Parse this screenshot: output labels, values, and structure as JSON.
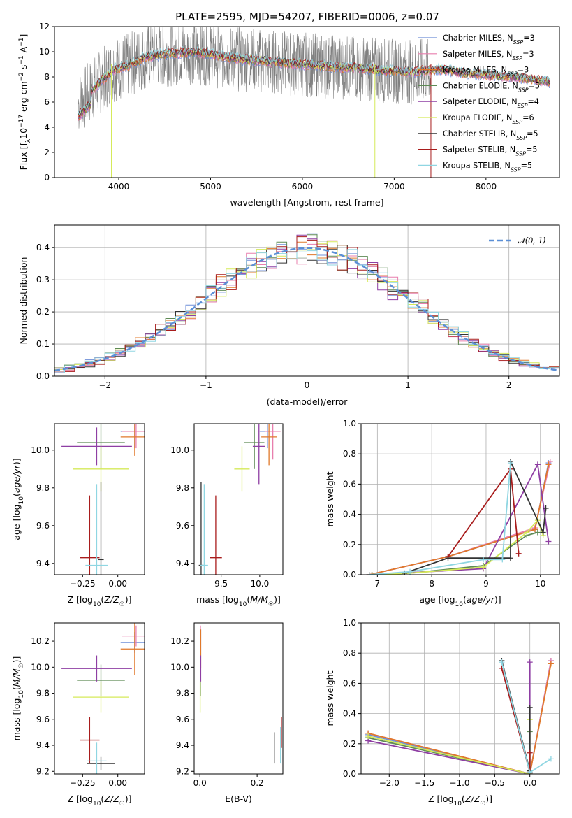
{
  "figure_title": "PLATE=2595, MJD=54207, FIBERID=0006, z=0.07",
  "colors": {
    "Chabrier MILES": "#6f8fd8",
    "Salpeter MILES": "#e87fae",
    "Kroupa MILES": "#e0782a",
    "Chabrier ELODIE": "#5e8a55",
    "Salpeter ELODIE": "#8e3ea3",
    "Kroupa ELODIE": "#d5ea5a",
    "Chabrier STELIB": "#333333",
    "Salpeter STELIB": "#a81c1c",
    "Kroupa STELIB": "#8fd6e2",
    "data": "#808080",
    "normal": "#5b8fd6"
  },
  "chart_data": [
    {
      "id": "spectrum",
      "type": "line",
      "title": "PLATE=2595, MJD=54207, FIBERID=0006, z=0.07",
      "xlabel": "wavelength [Angstrom, rest frame]",
      "ylabel": "Flux [f_λ 10^-17 erg cm^-2 s^-1 A^-1]",
      "xlim": [
        3300,
        8800
      ],
      "ylim": [
        0,
        12
      ],
      "xticks": [
        4000,
        5000,
        6000,
        7000,
        8000
      ],
      "yticks": [
        0,
        2,
        4,
        6,
        8,
        10,
        12
      ],
      "legend_position": "right",
      "legend": [
        {
          "base": "Chabrier MILES, N",
          "sub": "SSP",
          "tail": "=3"
        },
        {
          "base": "Salpeter MILES, N",
          "sub": "SSP",
          "tail": "=3"
        },
        {
          "base": "Kroupa MILES, N",
          "sub": "SSP",
          "tail": "=3"
        },
        {
          "base": "Chabrier ELODIE, N",
          "sub": "SSP",
          "tail": "=5"
        },
        {
          "base": "Salpeter ELODIE, N",
          "sub": "SSP",
          "tail": "=4"
        },
        {
          "base": "Kroupa ELODIE, N",
          "sub": "SSP",
          "tail": "=6"
        },
        {
          "base": "Chabrier STELIB, N",
          "sub": "SSP",
          "tail": "=5"
        },
        {
          "base": "Salpeter STELIB, N",
          "sub": "SSP",
          "tail": "=5"
        },
        {
          "base": "Kroupa STELIB, N",
          "sub": "SSP",
          "tail": "=5"
        }
      ],
      "continuum": {
        "x": [
          3550,
          3650,
          3800,
          3950,
          4100,
          4300,
          4500,
          4800,
          5000,
          5200,
          5500,
          5800,
          6000,
          6300,
          6600,
          6900,
          7200,
          7500,
          7800,
          8100,
          8400,
          8700
        ],
        "y": [
          5.8,
          6.5,
          7.6,
          8.6,
          8.9,
          9.6,
          9.8,
          10.0,
          9.8,
          9.5,
          9.3,
          9.1,
          9.0,
          8.8,
          8.7,
          8.5,
          8.4,
          8.6,
          8.3,
          8.1,
          7.9,
          7.6
        ]
      }
    },
    {
      "id": "residuals",
      "type": "histogram",
      "xlabel": "(data-model)/error",
      "ylabel": "Normed distribution",
      "xlim": [
        -2.5,
        2.5
      ],
      "ylim": [
        0,
        0.47
      ],
      "xticks": [
        -2,
        -1,
        0,
        1,
        2
      ],
      "yticks": [
        0.0,
        0.1,
        0.2,
        0.3,
        0.4
      ],
      "grid": true,
      "legend_position": "top-right",
      "legend_label": "𝒩(0, 1)",
      "bin_width": 0.1
    },
    {
      "id": "age-metallicity",
      "type": "errorbar",
      "xlabel": "Z [log10(Z/Z☉)]",
      "ylabel": "age [log10(age/yr)]",
      "xlim": [
        -0.45,
        0.19
      ],
      "ylim": [
        9.34,
        10.14
      ],
      "xticks": [
        -0.25,
        0.0
      ],
      "yticks": [
        9.4,
        9.6,
        9.8,
        10.0
      ],
      "points": [
        {
          "model": "Chabrier MILES",
          "x": 0.12,
          "xerr": 0.1,
          "y": 10.1,
          "yerr": 0.09
        },
        {
          "model": "Salpeter MILES",
          "x": 0.13,
          "xerr": 0.1,
          "y": 10.1,
          "yerr": 0.09
        },
        {
          "model": "Kroupa MILES",
          "x": 0.12,
          "xerr": 0.1,
          "y": 10.07,
          "yerr": 0.1
        },
        {
          "model": "Chabrier ELODIE",
          "x": -0.12,
          "xerr": 0.17,
          "y": 10.04,
          "yerr": 0.14
        },
        {
          "model": "Salpeter ELODIE",
          "x": -0.15,
          "xerr": 0.25,
          "y": 10.02,
          "yerr": 0.1
        },
        {
          "model": "Kroupa ELODIE",
          "x": -0.12,
          "xerr": 0.2,
          "y": 9.9,
          "yerr": 0.12
        },
        {
          "model": "Chabrier STELIB",
          "x": -0.12,
          "xerr": 0.02,
          "y": 9.42,
          "yerr": 0.41
        },
        {
          "model": "Salpeter STELIB",
          "x": -0.2,
          "xerr": 0.07,
          "y": 9.43,
          "yerr": 0.33
        },
        {
          "model": "Kroupa STELIB",
          "x": -0.15,
          "xerr": 0.08,
          "y": 9.39,
          "yerr": 0.43
        }
      ]
    },
    {
      "id": "age-mass",
      "type": "errorbar",
      "xlabel": "mass [log10(M/M☉)]",
      "ylabel": "",
      "xlim": [
        9.15,
        10.3
      ],
      "ylim": [
        9.34,
        10.14
      ],
      "xticks": [
        9.5,
        10.0
      ],
      "yticks": [
        9.4,
        9.6,
        9.8,
        10.0
      ],
      "points": [
        {
          "model": "Chabrier MILES",
          "x": 10.1,
          "xerr": 0.1,
          "y": 10.1,
          "yerr": 0.09
        },
        {
          "model": "Salpeter MILES",
          "x": 10.17,
          "xerr": 0.1,
          "y": 10.1,
          "yerr": 0.15
        },
        {
          "model": "Kroupa MILES",
          "x": 10.12,
          "xerr": 0.1,
          "y": 10.07,
          "yerr": 0.15
        },
        {
          "model": "Chabrier ELODIE",
          "x": 9.93,
          "xerr": 0.13,
          "y": 10.04,
          "yerr": 0.14
        },
        {
          "model": "Salpeter ELODIE",
          "x": 9.99,
          "xerr": 0.08,
          "y": 10.02,
          "yerr": 0.2
        },
        {
          "model": "Kroupa ELODIE",
          "x": 9.77,
          "xerr": 0.1,
          "y": 9.9,
          "yerr": 0.12
        },
        {
          "model": "Chabrier STELIB",
          "x": 9.24,
          "xerr": 0.03,
          "y": 9.39,
          "yerr": 0.44
        },
        {
          "model": "Salpeter STELIB",
          "x": 9.43,
          "xerr": 0.08,
          "y": 9.43,
          "yerr": 0.33
        },
        {
          "model": "Kroupa STELIB",
          "x": 9.28,
          "xerr": 0.05,
          "y": 9.39,
          "yerr": 0.43
        }
      ]
    },
    {
      "id": "mass-weight-vs-age",
      "type": "line",
      "xlabel": "age [log10(age/yr)]",
      "ylabel": "mass weight",
      "xlim": [
        6.7,
        10.35
      ],
      "ylim": [
        0,
        1
      ],
      "xticks": [
        7,
        8,
        9,
        10
      ],
      "yticks": [
        0.0,
        0.2,
        0.4,
        0.6,
        0.8,
        1.0
      ],
      "grid": true,
      "series": [
        {
          "model": "Chabrier MILES",
          "x": [
            6.85,
            8.3,
            9.9,
            10.15
          ],
          "y": [
            0.0,
            0.12,
            0.3,
            0.74
          ]
        },
        {
          "model": "Salpeter MILES",
          "x": [
            6.85,
            8.3,
            9.9,
            10.18
          ],
          "y": [
            0.0,
            0.12,
            0.31,
            0.75
          ]
        },
        {
          "model": "Kroupa MILES",
          "x": [
            6.85,
            8.3,
            9.9,
            10.15
          ],
          "y": [
            0.0,
            0.12,
            0.3,
            0.73
          ]
        },
        {
          "model": "Chabrier ELODIE",
          "x": [
            6.9,
            7.6,
            8.95,
            9.75,
            9.95
          ],
          "y": [
            0.0,
            0.01,
            0.06,
            0.26,
            0.28
          ]
        },
        {
          "model": "Salpeter ELODIE",
          "x": [
            6.9,
            8.95,
            9.95,
            10.15
          ],
          "y": [
            0.0,
            0.04,
            0.73,
            0.22
          ]
        },
        {
          "model": "Kroupa ELODIE",
          "x": [
            6.9,
            7.6,
            8.95,
            9.75,
            9.95,
            10.05
          ],
          "y": [
            0.0,
            0.01,
            0.05,
            0.28,
            0.36,
            0.26
          ]
        },
        {
          "model": "Chabrier STELIB",
          "x": [
            7.5,
            8.3,
            9.45,
            9.45,
            10.05,
            10.1
          ],
          "y": [
            0.01,
            0.11,
            0.11,
            0.75,
            0.28,
            0.44
          ]
        },
        {
          "model": "Salpeter STELIB",
          "x": [
            8.3,
            9.45,
            9.6
          ],
          "y": [
            0.12,
            0.7,
            0.14
          ]
        },
        {
          "model": "Kroupa STELIB",
          "x": [
            6.85,
            7.6,
            8.95,
            9.3,
            9.45
          ],
          "y": [
            0.0,
            0.02,
            0.1,
            0.1,
            0.74
          ]
        }
      ]
    },
    {
      "id": "mass-metallicity",
      "type": "errorbar",
      "xlabel": "Z [log10(Z/Z☉)]",
      "ylabel": "mass [log10(M/M☉)]",
      "xlim": [
        -0.45,
        0.19
      ],
      "ylim": [
        9.18,
        10.34
      ],
      "xticks": [
        -0.25,
        0.0
      ],
      "yticks": [
        9.2,
        9.4,
        9.6,
        9.8,
        10.0,
        10.2
      ],
      "points": [
        {
          "model": "Chabrier MILES",
          "x": 0.12,
          "xerr": 0.1,
          "y": 10.19,
          "yerr": 0.08
        },
        {
          "model": "Salpeter MILES",
          "x": 0.13,
          "xerr": 0.1,
          "y": 10.24,
          "yerr": 0.08
        },
        {
          "model": "Kroupa MILES",
          "x": 0.12,
          "xerr": 0.1,
          "y": 10.14,
          "yerr": 0.2
        },
        {
          "model": "Chabrier ELODIE",
          "x": -0.12,
          "xerr": 0.17,
          "y": 9.9,
          "yerr": 0.12
        },
        {
          "model": "Salpeter ELODIE",
          "x": -0.15,
          "xerr": 0.25,
          "y": 9.99,
          "yerr": 0.1
        },
        {
          "model": "Kroupa ELODIE",
          "x": -0.12,
          "xerr": 0.2,
          "y": 9.77,
          "yerr": 0.12
        },
        {
          "model": "Chabrier STELIB",
          "x": -0.12,
          "xerr": 0.1,
          "y": 9.26,
          "yerr": 0.05
        },
        {
          "model": "Salpeter STELIB",
          "x": -0.2,
          "xerr": 0.07,
          "y": 9.44,
          "yerr": 0.18
        },
        {
          "model": "Kroupa STELIB",
          "x": -0.15,
          "xerr": 0.07,
          "y": 9.28,
          "yerr": 0.14
        }
      ]
    },
    {
      "id": "mass-extinction",
      "type": "errorbar",
      "xlabel": "E(B-V)",
      "ylabel": "",
      "xlim": [
        -0.02,
        0.29
      ],
      "ylim": [
        9.18,
        10.34
      ],
      "xticks": [
        0.0,
        0.2
      ],
      "yticks": [
        9.2,
        9.4,
        9.6,
        9.8,
        10.0,
        10.2
      ],
      "points": [
        {
          "model": "Chabrier MILES",
          "x": 0.003,
          "xerr": 0.0,
          "y": 10.19,
          "yerr": 0.1
        },
        {
          "model": "Salpeter MILES",
          "x": 0.002,
          "xerr": 0.0,
          "y": 10.24,
          "yerr": 0.08
        },
        {
          "model": "Kroupa MILES",
          "x": 0.003,
          "xerr": 0.0,
          "y": 10.14,
          "yerr": 0.15
        },
        {
          "model": "Chabrier ELODIE",
          "x": 0.002,
          "xerr": 0.0,
          "y": 9.9,
          "yerr": 0.12
        },
        {
          "model": "Salpeter ELODIE",
          "x": 0.003,
          "xerr": 0.0,
          "y": 9.99,
          "yerr": 0.1
        },
        {
          "model": "Kroupa ELODIE",
          "x": 0.001,
          "xerr": 0.0,
          "y": 9.77,
          "yerr": 0.12
        },
        {
          "model": "Chabrier STELIB",
          "x": 0.26,
          "xerr": 0.0,
          "y": 9.38,
          "yerr": 0.12
        },
        {
          "model": "Salpeter STELIB",
          "x": 0.285,
          "xerr": 0.0,
          "y": 9.5,
          "yerr": 0.12
        },
        {
          "model": "Kroupa STELIB",
          "x": 0.282,
          "xerr": 0.0,
          "y": 9.4,
          "yerr": 0.14
        }
      ]
    },
    {
      "id": "mass-weight-vs-metallicity",
      "type": "line",
      "xlabel": "Z [log10(Z/Z☉)]",
      "ylabel": "mass weight",
      "xlim": [
        -2.4,
        0.42
      ],
      "ylim": [
        0,
        1
      ],
      "xticks": [
        -2.0,
        -1.5,
        -1.0,
        -0.5,
        0.0
      ],
      "yticks": [
        0.0,
        0.2,
        0.4,
        0.6,
        0.8,
        1.0
      ],
      "grid": true,
      "series": [
        {
          "model": "Chabrier MILES",
          "x": [
            -2.3,
            0.0,
            0.3
          ],
          "y": [
            0.26,
            0.0,
            0.75
          ]
        },
        {
          "model": "Salpeter MILES",
          "x": [
            -2.3,
            0.0,
            0.3
          ],
          "y": [
            0.27,
            0.0,
            0.75
          ]
        },
        {
          "model": "Kroupa MILES",
          "x": [
            -2.3,
            0.0,
            0.3
          ],
          "y": [
            0.27,
            0.0,
            0.73
          ]
        },
        {
          "model": "Chabrier ELODIE",
          "x": [
            -2.3,
            0.0,
            0.0
          ],
          "y": [
            0.24,
            0.0,
            0.28
          ]
        },
        {
          "model": "Salpeter ELODIE",
          "x": [
            -2.3,
            0.0,
            0.0
          ],
          "y": [
            0.22,
            0.0,
            0.74
          ]
        },
        {
          "model": "Kroupa ELODIE",
          "x": [
            -2.3,
            0.0,
            0.0
          ],
          "y": [
            0.25,
            0.0,
            0.36
          ]
        },
        {
          "model": "Chabrier STELIB",
          "x": [
            -0.4,
            0.0,
            0.0
          ],
          "y": [
            0.75,
            0.02,
            0.44
          ]
        },
        {
          "model": "Salpeter STELIB",
          "x": [
            -0.4,
            0.0,
            0.0
          ],
          "y": [
            0.7,
            0.01,
            0.14
          ]
        },
        {
          "model": "Kroupa STELIB",
          "x": [
            -0.4,
            0.0,
            0.3
          ],
          "y": [
            0.74,
            0.01,
            0.1
          ]
        }
      ]
    }
  ]
}
